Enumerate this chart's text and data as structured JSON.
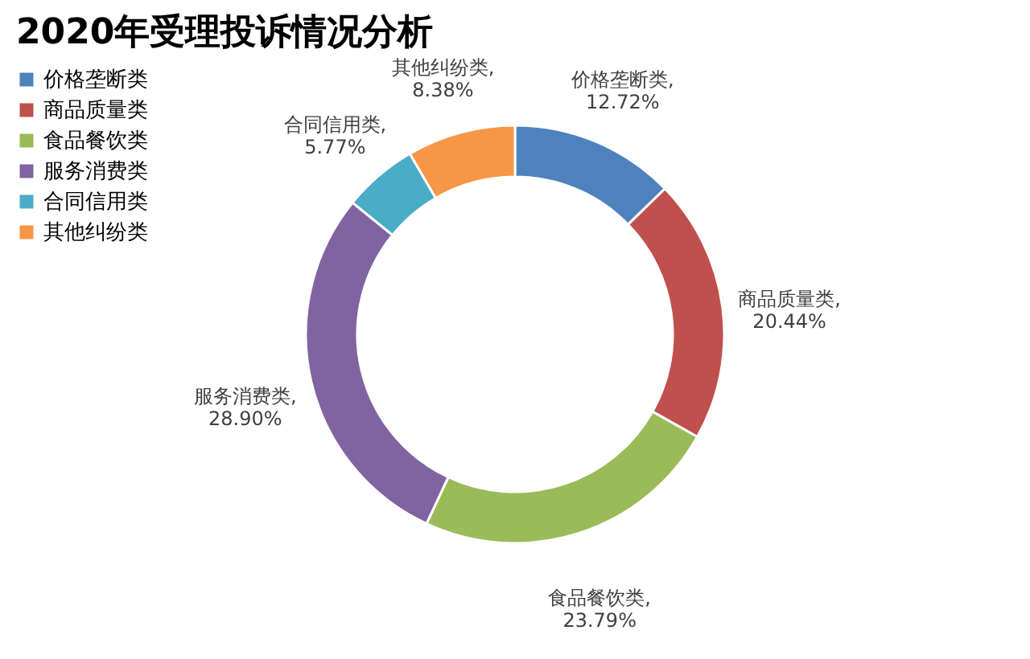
{
  "chart_data": {
    "type": "donut",
    "title": "2020年受理投诉情况分析",
    "categories": [
      "价格垄断类",
      "商品质量类",
      "食品餐饮类",
      "服务消费类",
      "合同信用类",
      "其他纠纷类"
    ],
    "values": [
      12.72,
      20.44,
      23.79,
      28.9,
      5.77,
      8.38
    ],
    "value_labels": [
      "价格垄断类, 12.72%",
      "商品质量类, 20.44%",
      "食品餐饮类, 23.79%",
      "服务消费类, 28.90%",
      "合同信用类, 5.77%",
      "其他纠纷类, 8.38%"
    ],
    "colors": [
      "#4f81bd",
      "#c0504d",
      "#9bbb59",
      "#8064a2",
      "#4bacc6",
      "#f79646"
    ],
    "legend": "left"
  }
}
